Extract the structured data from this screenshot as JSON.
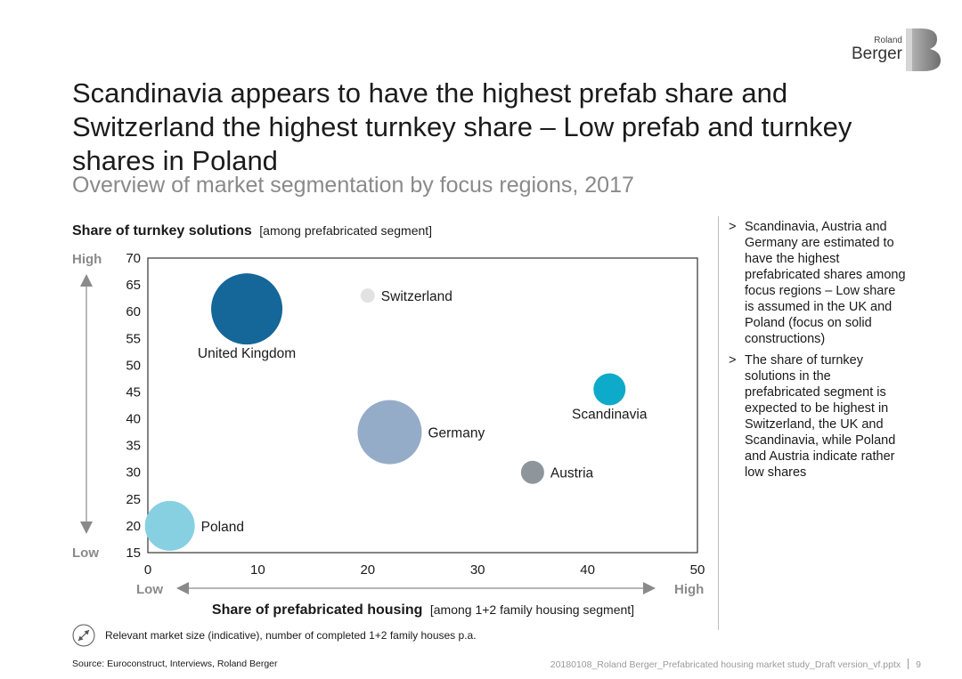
{
  "brand": {
    "line1": "Roland",
    "line2": "Berger"
  },
  "title": "Scandinavia appears to have the highest prefab share and Switzerland the highest turnkey share – Low prefab and turnkey shares in Poland",
  "subtitle": "Overview of market segmentation by focus regions, 2017",
  "chart_data": {
    "type": "scatter",
    "title": "",
    "ylabel_bold": "Share of turnkey solutions",
    "ylabel_note": "[among prefabricated segment]",
    "xlabel_bold": "Share of prefabricated housing",
    "xlabel_note": "[among 1+2 family housing segment]",
    "xlim": [
      0,
      50
    ],
    "ylim": [
      15,
      70
    ],
    "x_ticks": [
      0,
      10,
      20,
      30,
      40,
      50
    ],
    "y_ticks": [
      15,
      20,
      25,
      30,
      35,
      40,
      45,
      50,
      55,
      60,
      65,
      70
    ],
    "y_high_label": "High",
    "y_low_label": "Low",
    "x_low_label": "Low",
    "x_high_label": "High",
    "points": [
      {
        "name": "United Kingdom",
        "x": 9,
        "y": 60.5,
        "size": 40,
        "color": "#156699",
        "label_pos": "below"
      },
      {
        "name": "Switzerland",
        "x": 20,
        "y": 63,
        "size": 8,
        "color": "#e2e2e2",
        "label_pos": "right"
      },
      {
        "name": "Scandinavia",
        "x": 42,
        "y": 45.5,
        "size": 18,
        "color": "#0eaac9",
        "label_pos": "below"
      },
      {
        "name": "Germany",
        "x": 22,
        "y": 37.5,
        "size": 36,
        "color": "#95acc9",
        "label_pos": "right"
      },
      {
        "name": "Austria",
        "x": 35,
        "y": 30,
        "size": 13,
        "color": "#8f969b",
        "label_pos": "right"
      },
      {
        "name": "Poland",
        "x": 2,
        "y": 20,
        "size": 28,
        "color": "#86d0e2",
        "label_pos": "right"
      }
    ]
  },
  "notes": [
    "Scandinavia, Austria and Germany are estimated to have the highest prefabricated shares among focus regions – Low share is assumed in the UK and Poland (focus on solid constructions)",
    "The share of turnkey solutions in the prefabricated segment is expected to be highest in Switzerland, the UK and Scandinavia, while Poland and Austria indicate rather low shares"
  ],
  "bullet_marker": ">",
  "legend_note": "Relevant market size (indicative), number of completed 1+2 family houses p.a.",
  "source": "Source: Euroconstruct, Interviews, Roland Berger",
  "footer": {
    "file": "20180108_Roland Berger_Prefabricated housing market study_Draft version_vf.pptx",
    "page": "9"
  },
  "colors": {
    "accent": "#156699",
    "axis": "#333333",
    "arrow": "#8a8a8a"
  }
}
